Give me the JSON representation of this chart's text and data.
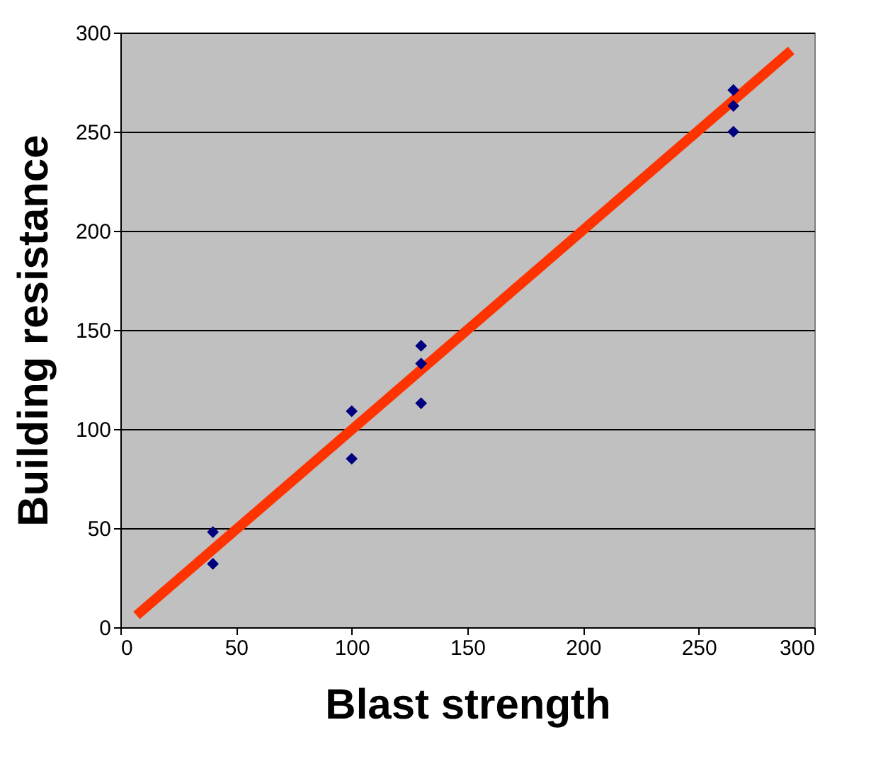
{
  "chart_data": {
    "type": "scatter",
    "xlabel": "Blast strength",
    "ylabel": "Building resistance",
    "xlim": [
      0,
      300
    ],
    "xticks": [
      0,
      50,
      100,
      150,
      200,
      250,
      300
    ],
    "ylim": [
      0,
      300
    ],
    "yticks": [
      0,
      50,
      100,
      150,
      200,
      250,
      300
    ],
    "grid": "y",
    "legend": false,
    "series": [
      {
        "type": "line",
        "color": "#ff3300",
        "line_style": "solid",
        "x": [
          7,
          290
        ],
        "values": [
          6,
          291
        ]
      },
      {
        "color": "#000080",
        "marker": "diamond",
        "x": [
          40,
          40,
          100,
          100,
          130,
          130,
          130,
          265,
          265,
          265
        ],
        "values": [
          48,
          32,
          109,
          85,
          142,
          133,
          113,
          271,
          263,
          250
        ]
      }
    ]
  }
}
